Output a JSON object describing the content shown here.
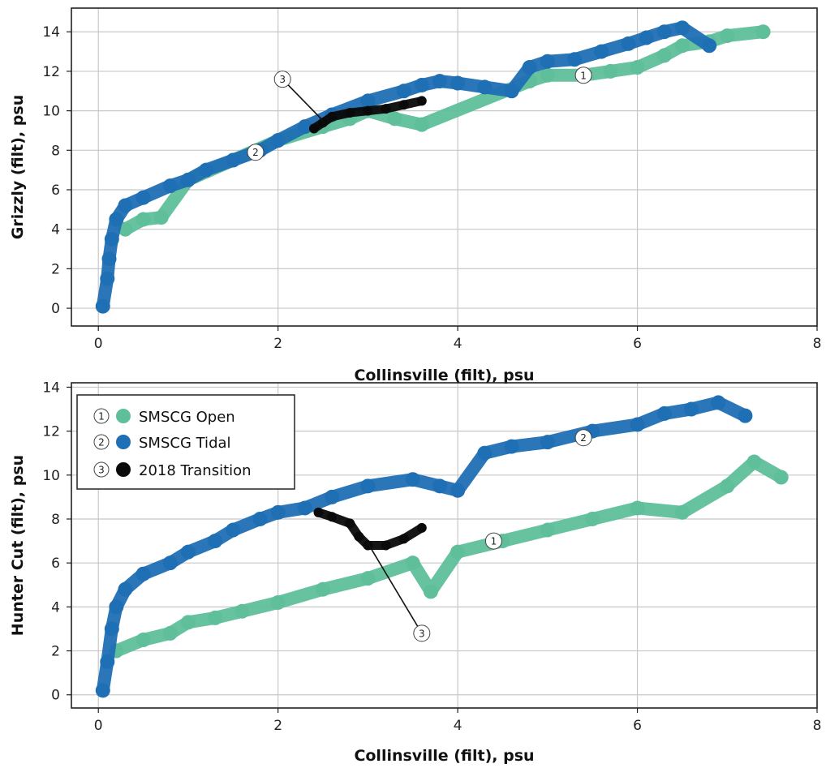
{
  "colors": {
    "open": "#5fbf9b",
    "tidal": "#1f6fb4",
    "transition": "#0a0a0a",
    "grid": "#c8c8c8",
    "frame": "#222222"
  },
  "chart_data": [
    {
      "type": "scatter",
      "xlabel": "Collinsville (filt), psu",
      "ylabel": "Grizzly (filt), psu",
      "xlim": [
        -0.3,
        8
      ],
      "ylim": [
        -0.9,
        15.2
      ],
      "xticks": [
        0,
        2,
        4,
        6,
        8
      ],
      "yticks": [
        0,
        2,
        4,
        6,
        8,
        10,
        12,
        14
      ],
      "grid": true,
      "series": [
        {
          "name": "SMSCG Open",
          "marker": "1",
          "color_key": "open",
          "x": [
            0.3,
            0.5,
            0.7,
            1.0,
            1.5,
            2.0,
            2.5,
            2.8,
            3.0,
            3.3,
            3.6,
            4.8,
            5.0,
            5.4,
            5.7,
            6.0,
            6.3,
            6.5,
            6.8,
            7.0,
            7.4
          ],
          "y": [
            4.0,
            4.5,
            4.6,
            6.5,
            7.5,
            8.5,
            9.2,
            9.6,
            10.0,
            9.6,
            9.3,
            11.5,
            11.8,
            11.8,
            12.0,
            12.2,
            12.8,
            13.3,
            13.5,
            13.8,
            14.0
          ]
        },
        {
          "name": "SMSCG Tidal",
          "marker": "2",
          "color_key": "tidal",
          "x": [
            0.05,
            0.1,
            0.12,
            0.15,
            0.2,
            0.3,
            0.5,
            0.8,
            1.0,
            1.2,
            1.5,
            1.8,
            2.0,
            2.3,
            2.6,
            3.0,
            3.4,
            3.6,
            3.8,
            4.0,
            4.3,
            4.6,
            4.8,
            5.0,
            5.3,
            5.6,
            5.9,
            6.1,
            6.3,
            6.5,
            6.8
          ],
          "y": [
            0.1,
            1.5,
            2.5,
            3.5,
            4.5,
            5.2,
            5.6,
            6.2,
            6.5,
            7.0,
            7.5,
            8.0,
            8.5,
            9.2,
            9.8,
            10.5,
            11.0,
            11.3,
            11.5,
            11.4,
            11.2,
            11.0,
            12.2,
            12.5,
            12.6,
            13.0,
            13.4,
            13.7,
            14.0,
            14.2,
            13.3
          ]
        },
        {
          "name": "2018 Transition",
          "marker": "3",
          "color_key": "transition",
          "x": [
            2.4,
            2.5,
            2.6,
            2.8,
            3.0,
            3.2,
            3.4,
            3.6
          ],
          "y": [
            9.1,
            9.4,
            9.7,
            9.9,
            10.0,
            10.1,
            10.3,
            10.5
          ]
        }
      ],
      "annotations": [
        {
          "marker": "1",
          "x": 5.4,
          "y": 11.8
        },
        {
          "marker": "2",
          "x": 1.75,
          "y": 7.9
        },
        {
          "marker": "3",
          "x": 2.05,
          "y": 11.6,
          "arrow_to": [
            2.5,
            9.5
          ]
        }
      ]
    },
    {
      "type": "scatter",
      "xlabel": "Collinsville (filt), psu",
      "ylabel": "Hunter Cut (filt), psu",
      "xlim": [
        -0.3,
        8
      ],
      "ylim": [
        -0.6,
        14.2
      ],
      "xticks": [
        0,
        2,
        4,
        6,
        8
      ],
      "yticks": [
        0,
        2,
        4,
        6,
        8,
        10,
        12,
        14
      ],
      "grid": true,
      "legend": "top-left",
      "series": [
        {
          "name": "SMSCG Open",
          "marker": "1",
          "color_key": "open",
          "x": [
            0.2,
            0.5,
            0.8,
            1.0,
            1.3,
            1.6,
            2.0,
            2.5,
            3.0,
            3.5,
            3.7,
            4.0,
            4.5,
            5.0,
            5.5,
            6.0,
            6.5,
            7.0,
            7.3,
            7.6
          ],
          "y": [
            2.0,
            2.5,
            2.8,
            3.3,
            3.5,
            3.8,
            4.2,
            4.8,
            5.3,
            6.0,
            4.7,
            6.5,
            7.0,
            7.5,
            8.0,
            8.5,
            8.3,
            9.5,
            10.6,
            9.9
          ]
        },
        {
          "name": "SMSCG Tidal",
          "marker": "2",
          "color_key": "tidal",
          "x": [
            0.05,
            0.1,
            0.15,
            0.2,
            0.3,
            0.5,
            0.8,
            1.0,
            1.3,
            1.5,
            1.8,
            2.0,
            2.3,
            2.6,
            3.0,
            3.5,
            3.8,
            4.0,
            4.3,
            4.6,
            5.0,
            5.5,
            6.0,
            6.3,
            6.6,
            6.9,
            7.2
          ],
          "y": [
            0.2,
            1.5,
            3.0,
            4.0,
            4.8,
            5.5,
            6.0,
            6.5,
            7.0,
            7.5,
            8.0,
            8.3,
            8.5,
            9.0,
            9.5,
            9.8,
            9.5,
            9.3,
            11.0,
            11.3,
            11.5,
            12.0,
            12.3,
            12.8,
            13.0,
            13.3,
            12.7
          ]
        },
        {
          "name": "2018 Transition",
          "marker": "3",
          "color_key": "transition",
          "x": [
            2.45,
            2.6,
            2.8,
            2.9,
            3.0,
            3.2,
            3.4,
            3.6
          ],
          "y": [
            8.3,
            8.1,
            7.8,
            7.2,
            6.8,
            6.8,
            7.1,
            7.6
          ]
        }
      ],
      "annotations": [
        {
          "marker": "1",
          "x": 4.4,
          "y": 7.0
        },
        {
          "marker": "2",
          "x": 5.4,
          "y": 11.7
        },
        {
          "marker": "3",
          "x": 3.6,
          "y": 2.8,
          "arrow_to": [
            3.0,
            6.9
          ]
        }
      ]
    }
  ]
}
